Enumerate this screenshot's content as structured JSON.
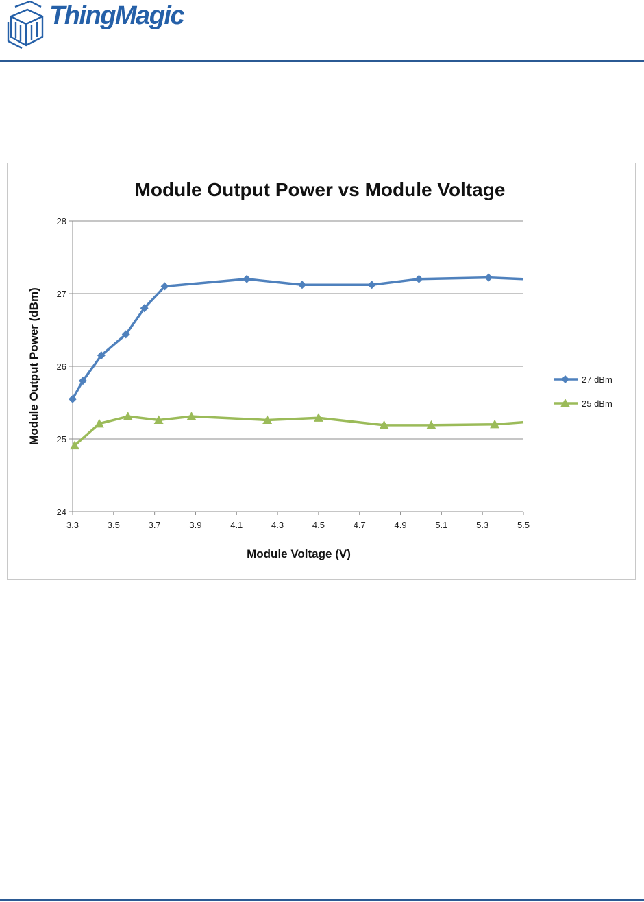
{
  "brand": {
    "name": "ThingMagic",
    "color": "#2560a8",
    "rule_color": "#2b5a94"
  },
  "chart_data": {
    "type": "line",
    "title": "Module Output Power vs Module Voltage",
    "xlabel": "Module Voltage (V)",
    "ylabel": "Module Output Power (dBm)",
    "xlim": [
      3.3,
      5.5
    ],
    "ylim": [
      24,
      28
    ],
    "x_ticks": [
      "3.3",
      "3.5",
      "3.7",
      "3.9",
      "4.1",
      "4.3",
      "4.5",
      "4.7",
      "4.9",
      "5.1",
      "5.3",
      "5.5"
    ],
    "y_ticks": [
      "24",
      "25",
      "26",
      "27",
      "28"
    ],
    "grid": {
      "horizontal": true,
      "vertical": false
    },
    "legend_position": "right",
    "series": [
      {
        "name": "27 dBm",
        "color": "#4f81bd",
        "marker": "diamond",
        "points": [
          [
            3.3,
            25.55
          ],
          [
            3.35,
            25.8
          ],
          [
            3.44,
            26.15
          ],
          [
            3.56,
            26.44
          ],
          [
            3.65,
            26.8
          ],
          [
            3.75,
            27.1
          ],
          [
            4.15,
            27.2
          ],
          [
            4.42,
            27.12
          ],
          [
            4.76,
            27.12
          ],
          [
            4.99,
            27.2
          ],
          [
            5.33,
            27.22
          ],
          [
            5.5,
            27.2
          ]
        ]
      },
      {
        "name": "25 dBm",
        "color": "#9bbb59",
        "marker": "triangle",
        "points": [
          [
            3.31,
            24.91
          ],
          [
            3.43,
            25.21
          ],
          [
            3.57,
            25.31
          ],
          [
            3.72,
            25.26
          ],
          [
            3.88,
            25.31
          ],
          [
            4.25,
            25.26
          ],
          [
            4.5,
            25.29
          ],
          [
            4.82,
            25.19
          ],
          [
            5.05,
            25.19
          ],
          [
            5.36,
            25.2
          ],
          [
            5.5,
            25.23
          ]
        ]
      }
    ]
  }
}
